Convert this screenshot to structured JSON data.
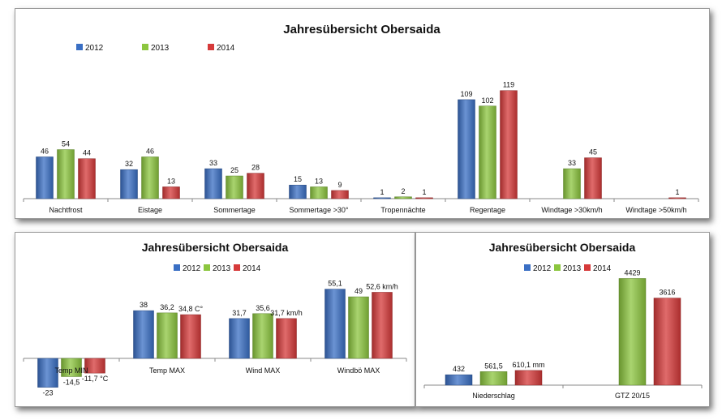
{
  "colors": {
    "2012": "#3a6fc4",
    "2013": "#8cc63f",
    "2014": "#d63a3a"
  },
  "chart_data": [
    {
      "type": "bar",
      "title": "Jahresübersicht Obersaida",
      "categories": [
        "Nachtfrost",
        "Eistage",
        "Sommertage",
        "Sommertage >30°",
        "Tropennächte",
        "Regentage",
        "Windtage >30km/h",
        "Windtage >50km/h"
      ],
      "series": [
        {
          "name": "2012",
          "values": [
            46,
            32,
            33,
            15,
            1,
            109,
            null,
            null
          ]
        },
        {
          "name": "2013",
          "values": [
            54,
            46,
            25,
            13,
            2,
            102,
            33,
            null
          ]
        },
        {
          "name": "2014",
          "values": [
            44,
            13,
            28,
            9,
            1,
            119,
            45,
            1
          ]
        }
      ],
      "legend": "top-left"
    },
    {
      "type": "bar",
      "title": "Jahresübersicht Obersaida",
      "categories": [
        "Temp MIN",
        "Temp MAX",
        "Wind MAX",
        "Windbö MAX"
      ],
      "series": [
        {
          "name": "2012",
          "values": [
            -23,
            38,
            31.7,
            55.1
          ]
        },
        {
          "name": "2013",
          "values": [
            -14.5,
            36.2,
            35.6,
            49
          ]
        },
        {
          "name": "2014",
          "values": [
            -11.7,
            34.8,
            31.7,
            52.6
          ]
        }
      ],
      "value_labels": [
        [
          "-23",
          "-14,5",
          "-11,7 °C"
        ],
        [
          "38",
          "36,2",
          "34,8 C°"
        ],
        [
          "31,7",
          "35,6",
          "31,7 km/h"
        ],
        [
          "55,1",
          "49",
          "52,6 km/h"
        ]
      ],
      "legend": "top"
    },
    {
      "type": "bar",
      "title": "Jahresübersicht Obersaida",
      "categories": [
        "Niederschlag",
        "GTZ 20/15"
      ],
      "series": [
        {
          "name": "2012",
          "values": [
            432,
            null
          ]
        },
        {
          "name": "2013",
          "values": [
            561.5,
            4429
          ]
        },
        {
          "name": "2014",
          "values": [
            610.1,
            3616
          ]
        }
      ],
      "value_labels": [
        [
          "432",
          "561,5",
          "610,1 mm"
        ],
        [
          "",
          "4429",
          "3616"
        ]
      ],
      "legend": "top"
    }
  ]
}
